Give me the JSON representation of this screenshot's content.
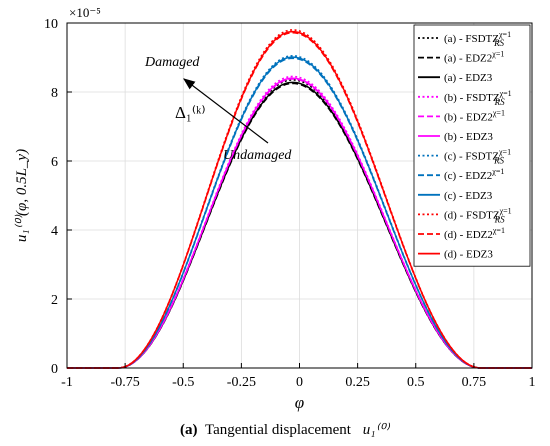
{
  "chart_data": {
    "type": "line",
    "xlabel": "φ",
    "ylabel": "u₁⁽⁰⁾(φ, 0.5L_y)",
    "exponent_label": "×10⁻⁵",
    "xlim": [
      -1,
      1
    ],
    "ylim": [
      0,
      10
    ],
    "x_ticks": [
      "-1",
      "-0.75",
      "-0.5",
      "-0.25",
      "0",
      "0.25",
      "0.5",
      "0.75",
      "1"
    ],
    "y_ticks": [
      "0",
      "2",
      "4",
      "6",
      "8",
      "10"
    ],
    "grid": true,
    "legend_position": "right-inside",
    "caption_bold": "(a)",
    "caption_text": "Tangential displacement",
    "caption_symbol": "u₁⁽⁰⁾",
    "annotations": {
      "damaged": "Damaged",
      "undamaged": "Undamaged",
      "delta": "Δ₁⁽ᵏ⁾"
    },
    "curve_domain": [
      -0.78,
      0.78
    ],
    "peak_x": -0.03,
    "series": [
      {
        "name": "(a) - FSDTZ_RS^{χ=1}",
        "prefix": "(a) - FSDTZ",
        "sub": "RS",
        "sup": "χ=1",
        "color": "#000000",
        "style": "dotted",
        "peak": 8.35
      },
      {
        "name": "(a) - EDZ2^{χ=1}",
        "prefix": "(a) - EDZ2",
        "sub": "",
        "sup": "χ=1",
        "color": "#000000",
        "style": "dashed",
        "peak": 8.25
      },
      {
        "name": "(a) - EDZ3",
        "prefix": "(a) - EDZ3",
        "sub": "",
        "sup": "",
        "color": "#000000",
        "style": "solid",
        "peak": 8.28
      },
      {
        "name": "(b) - FSDTZ_RS^{χ=1}",
        "prefix": "(b) - FSDTZ",
        "sub": "RS",
        "sup": "χ=1",
        "color": "#ff00ff",
        "style": "dotted",
        "peak": 8.45
      },
      {
        "name": "(b) - EDZ2^{χ=1}",
        "prefix": "(b) - EDZ2",
        "sub": "",
        "sup": "χ=1",
        "color": "#ff00ff",
        "style": "dashed",
        "peak": 8.38
      },
      {
        "name": "(b) - EDZ3",
        "prefix": "(b) - EDZ3",
        "sub": "",
        "sup": "",
        "color": "#ff00ff",
        "style": "solid",
        "peak": 8.4
      },
      {
        "name": "(c) - FSDTZ_RS^{χ=1}",
        "prefix": "(c) - FSDTZ",
        "sub": "RS",
        "sup": "χ=1",
        "color": "#0072bd",
        "style": "dotted",
        "peak": 9.05
      },
      {
        "name": "(c) - EDZ2^{χ=1}",
        "prefix": "(c) - EDZ2",
        "sub": "",
        "sup": "χ=1",
        "color": "#0072bd",
        "style": "dashed",
        "peak": 8.98
      },
      {
        "name": "(c) - EDZ3",
        "prefix": "(c) - EDZ3",
        "sub": "",
        "sup": "",
        "color": "#0072bd",
        "style": "solid",
        "peak": 9.01
      },
      {
        "name": "(d) - FSDTZ_RS^{χ=1}",
        "prefix": "(d) - FSDTZ",
        "sub": "RS",
        "sup": "χ=1",
        "color": "#ff0000",
        "style": "dotted",
        "peak": 9.8
      },
      {
        "name": "(d) - EDZ2^{χ=1}",
        "prefix": "(d) - EDZ2",
        "sub": "",
        "sup": "χ=1",
        "color": "#ff0000",
        "style": "dashed",
        "peak": 9.72
      },
      {
        "name": "(d) - EDZ3",
        "prefix": "(d) - EDZ3",
        "sub": "",
        "sup": "",
        "color": "#ff0000",
        "style": "solid",
        "peak": 9.75
      }
    ]
  }
}
